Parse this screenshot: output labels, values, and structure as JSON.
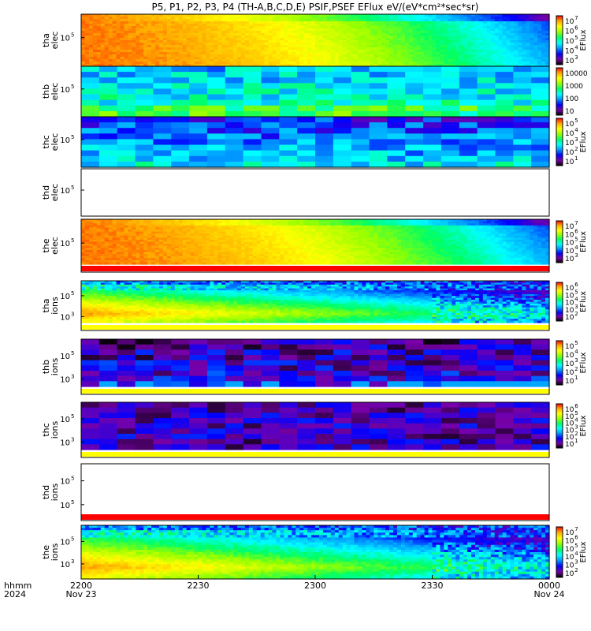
{
  "chart_data": {
    "type": "heatmap",
    "title": "P5, P1, P2, P3, P4 (TH-A,B,C,D,E) PSIF,PSEF EFlux eV/(eV*cm²*sec*sr)",
    "colorscale": [
      "#000000",
      "#7800a8",
      "#0000ff",
      "#0096ff",
      "#00ffff",
      "#00ff64",
      "#96ff00",
      "#ffff00",
      "#ffaa00",
      "#ff0000"
    ],
    "x_axis": {
      "label_lines": [
        "hhmm",
        "2024"
      ],
      "ticks": [
        {
          "label": "2200",
          "date": "Nov 23",
          "frac": 0.0
        },
        {
          "label": "2230",
          "date": "",
          "frac": 0.25
        },
        {
          "label": "2300",
          "date": "",
          "frac": 0.5
        },
        {
          "label": "2330",
          "date": "",
          "frac": 0.75
        },
        {
          "label": "0000",
          "date": "Nov 24",
          "frac": 1.0
        }
      ]
    },
    "panels": [
      {
        "name": "tha elec",
        "label": [
          "tha",
          "elec"
        ],
        "ytick_mantissa": "10",
        "ytick_exponents": [
          "5"
        ],
        "mode": "elec_hot",
        "colorbar": {
          "label": "EFlux",
          "ticks": [
            [
              "10",
              "7"
            ],
            [
              "10",
              "6"
            ],
            [
              "10",
              "5"
            ],
            [
              "10",
              "4"
            ],
            [
              "10",
              "3"
            ]
          ]
        },
        "bars": []
      },
      {
        "name": "thb elec",
        "label": [
          "thb",
          "elec"
        ],
        "ytick_mantissa": "10",
        "ytick_exponents": [
          "5"
        ],
        "mode": "elec_noise",
        "colorbar": {
          "label": "",
          "ticks": [
            [
              "10000",
              ""
            ],
            [
              "1000",
              ""
            ],
            [
              "100",
              ""
            ],
            [
              "10",
              ""
            ]
          ]
        },
        "bars": []
      },
      {
        "name": "thc elec",
        "label": [
          "thc",
          "elec"
        ],
        "ytick_mantissa": "10",
        "ytick_exponents": [
          "5"
        ],
        "mode": "elec_noise2",
        "colorbar": {
          "label": "EFlux",
          "ticks": [
            [
              "10",
              "5"
            ],
            [
              "10",
              "4"
            ],
            [
              "10",
              "3"
            ],
            [
              "10",
              "2"
            ],
            [
              "10",
              "1"
            ]
          ]
        },
        "bars": []
      },
      {
        "name": "thd elec",
        "label": [
          "thd",
          "elec"
        ],
        "ytick_mantissa": "10",
        "ytick_exponents": [
          "5"
        ],
        "mode": "empty",
        "colorbar": null,
        "bars": []
      },
      {
        "name": "the elec",
        "label": [
          "the",
          "elec"
        ],
        "ytick_mantissa": "10",
        "ytick_exponents": [
          "5"
        ],
        "mode": "elec_hot",
        "colorbar": {
          "label": "EFlux",
          "ticks": [
            [
              "10",
              "7"
            ],
            [
              "10",
              "6"
            ],
            [
              "10",
              "5"
            ],
            [
              "10",
              "4"
            ],
            [
              "10",
              "3"
            ]
          ]
        },
        "bars": [
          "red"
        ]
      },
      {
        "name": "tha ions",
        "label": [
          "tha",
          "ions"
        ],
        "ytick_mantissa": "10",
        "ytick_exponents": [
          "5",
          "3"
        ],
        "mode": "ions",
        "colorbar": {
          "label": "EFlux",
          "ticks": [
            [
              "10",
              "6"
            ],
            [
              "10",
              "5"
            ],
            [
              "10",
              "4"
            ],
            [
              "10",
              "3"
            ],
            [
              "10",
              "2"
            ]
          ]
        },
        "bars": [
          "yellow"
        ]
      },
      {
        "name": "thb ions",
        "label": [
          "thb",
          "ions"
        ],
        "ytick_mantissa": "10",
        "ytick_exponents": [
          "5",
          "3"
        ],
        "mode": "ions_noise",
        "colorbar": {
          "label": "EFlux",
          "ticks": [
            [
              "10",
              "5"
            ],
            [
              "10",
              "4"
            ],
            [
              "10",
              "3"
            ],
            [
              "10",
              "2"
            ],
            [
              "10",
              "1"
            ]
          ]
        },
        "bars": [
          "yellow"
        ]
      },
      {
        "name": "thc ions",
        "label": [
          "thc",
          "ions"
        ],
        "ytick_mantissa": "10",
        "ytick_exponents": [
          "5",
          "3"
        ],
        "mode": "ions_noise2",
        "colorbar": {
          "label": "EFlux",
          "ticks": [
            [
              "10",
              "6"
            ],
            [
              "10",
              "5"
            ],
            [
              "10",
              "4"
            ],
            [
              "10",
              "3"
            ],
            [
              "10",
              "2"
            ],
            [
              "10",
              "1"
            ]
          ]
        },
        "bars": [
          "yellow"
        ]
      },
      {
        "name": "thd ions",
        "label": [
          "thd",
          "ions"
        ],
        "ytick_mantissa": "10",
        "ytick_exponents": [
          "5",
          "5"
        ],
        "mode": "empty",
        "colorbar": null,
        "bars": [
          "red"
        ]
      },
      {
        "name": "the ions",
        "label": [
          "the",
          "ions"
        ],
        "ytick_mantissa": "10",
        "ytick_exponents": [
          "5",
          "3"
        ],
        "mode": "ions",
        "colorbar": {
          "label": "EFlux",
          "ticks": [
            [
              "10",
              "7"
            ],
            [
              "10",
              "6"
            ],
            [
              "10",
              "5"
            ],
            [
              "10",
              "4"
            ],
            [
              "10",
              "3"
            ],
            [
              "10",
              "2"
            ]
          ]
        },
        "bars": []
      }
    ]
  }
}
